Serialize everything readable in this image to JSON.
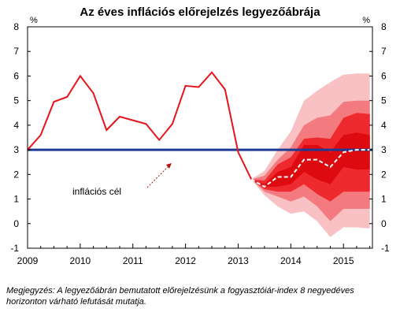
{
  "chart_data": {
    "type": "line",
    "title": "Az éves inflációs előrejelzés legyezőábrája",
    "y_unit": "%",
    "ylim": [
      -1,
      8
    ],
    "y_ticks": [
      "-1",
      "0",
      "1",
      "2",
      "3",
      "4",
      "5",
      "6",
      "7",
      "8"
    ],
    "xlim": [
      2009.0,
      2015.55
    ],
    "x_tick_labels": [
      "2009",
      "2010",
      "2011",
      "2012",
      "2013",
      "2014",
      "2015"
    ],
    "grid": false,
    "target": {
      "label": "inflációs cél",
      "value": 3
    },
    "series": [
      {
        "x": [
          2009.0,
          2009.25,
          2009.5,
          2009.75,
          2010.0,
          2010.25,
          2010.5,
          2010.75,
          2011.0,
          2011.25,
          2011.5,
          2011.75,
          2012.0,
          2012.25,
          2012.5,
          2012.75,
          2013.0,
          2013.25
        ],
        "values": [
          3.0,
          3.6,
          4.95,
          5.15,
          6.0,
          5.3,
          3.8,
          4.35,
          4.2,
          4.05,
          3.4,
          4.05,
          5.6,
          5.55,
          6.15,
          5.45,
          2.9,
          1.8
        ]
      },
      {
        "x": [
          2013.25,
          2013.5,
          2013.75,
          2014.0,
          2014.25,
          2014.5,
          2014.75,
          2015.0,
          2015.25,
          2015.5
        ],
        "values": [
          1.8,
          1.5,
          1.9,
          1.9,
          2.6,
          2.6,
          2.3,
          2.9,
          3.0,
          3.0
        ]
      }
    ],
    "fan": {
      "x": [
        2013.25,
        2013.5,
        2013.75,
        2014.0,
        2014.25,
        2014.5,
        2014.75,
        2015.0,
        2015.25,
        2015.5
      ],
      "bands": [
        {
          "lower": [
            1.8,
            1.15,
            0.7,
            0.4,
            0.5,
            0.1,
            -0.55,
            -0.15,
            -0.15,
            -0.2
          ],
          "upper": [
            1.8,
            2.15,
            3.0,
            3.75,
            5.0,
            5.4,
            5.75,
            6.05,
            6.1,
            6.1
          ]
        },
        {
          "lower": [
            1.8,
            1.3,
            1.1,
            0.9,
            1.1,
            0.7,
            0.1,
            0.6,
            0.6,
            0.6
          ],
          "upper": [
            1.8,
            1.95,
            2.6,
            3.1,
            4.0,
            4.3,
            4.4,
            4.95,
            5.0,
            5.0
          ]
        },
        {
          "lower": [
            1.8,
            1.4,
            1.3,
            1.3,
            1.6,
            1.2,
            0.9,
            1.3,
            1.3,
            1.3
          ],
          "upper": [
            1.8,
            1.75,
            2.4,
            2.7,
            3.45,
            3.5,
            3.45,
            4.3,
            4.5,
            4.45
          ]
        },
        {
          "lower": [
            1.8,
            1.5,
            1.5,
            1.6,
            2.1,
            1.8,
            1.6,
            2.3,
            2.2,
            2.2
          ],
          "upper": [
            1.8,
            1.6,
            2.1,
            2.3,
            3.2,
            3.2,
            2.9,
            3.6,
            3.7,
            3.6
          ]
        }
      ]
    },
    "colors": {
      "history": "#e8141b",
      "target": "#1f3a93",
      "median": "#ffffff",
      "bands": [
        "#f9c1c3",
        "#f37b80",
        "#ee2a2f",
        "#dd0a10"
      ]
    },
    "annotation": "inflációs cél"
  },
  "note": "Megjegyzés: A legyezőábrán bemutatott előrejelzésünk a fogyasztóiár-index 8 negyedéves horizonton várható lefutását mutatja."
}
